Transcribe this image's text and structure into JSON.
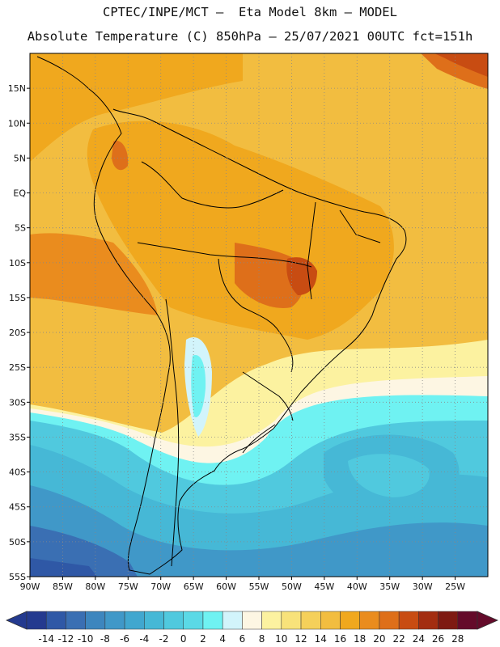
{
  "header": {
    "line1": "CPTEC/INPE/MCT –  Eta Model 8km – MODEL",
    "line2": "Absolute Temperature (C) 850hPa – 25/07/2021 00UTC fct=151h"
  },
  "map": {
    "type": "temperature-field",
    "variable": "Absolute Temperature",
    "units": "C",
    "level": "850hPa",
    "run": "25/07/2021 00UTC",
    "forecast_hours": "151h",
    "lon_range": [
      -90,
      -20
    ],
    "lat_range": [
      -55,
      20
    ],
    "lat_labels": [
      "15N",
      "10N",
      "5N",
      "EQ",
      "5S",
      "10S",
      "15S",
      "20S",
      "25S",
      "30S",
      "35S",
      "40S",
      "45S",
      "50S",
      "55S"
    ],
    "lat_values": [
      15,
      10,
      5,
      0,
      -5,
      -10,
      -15,
      -20,
      -25,
      -30,
      -35,
      -40,
      -45,
      -50,
      -55
    ],
    "lon_labels": [
      "90W",
      "85W",
      "80W",
      "75W",
      "70W",
      "65W",
      "60W",
      "55W",
      "50W",
      "45W",
      "40W",
      "35W",
      "30W",
      "25W"
    ],
    "lon_values": [
      -90,
      -85,
      -80,
      -75,
      -70,
      -65,
      -60,
      -55,
      -50,
      -45,
      -40,
      -35,
      -30,
      -25
    ]
  },
  "colorbar": {
    "labels": [
      "-14",
      "-12",
      "-10",
      "-8",
      "-6",
      "-4",
      "-2",
      "0",
      "2",
      "4",
      "6",
      "8",
      "10",
      "12",
      "14",
      "16",
      "18",
      "20",
      "22",
      "24",
      "26",
      "28"
    ],
    "colors": [
      "#243a8f",
      "#2f58a6",
      "#3a6fb3",
      "#3d86be",
      "#4098c8",
      "#41a7cf",
      "#46b8d6",
      "#50c9de",
      "#5bd9e6",
      "#6ff2f2",
      "#d2f4fb",
      "#fdf6e3",
      "#fcf2a0",
      "#f8e27a",
      "#f5d05a",
      "#f2bd40",
      "#f0a81e",
      "#ea8c1e",
      "#de6f1a",
      "#c84c12",
      "#a32d10",
      "#7e1a12",
      "#640b2a"
    ],
    "min_arrow_color": "#243a8f",
    "max_arrow_color": "#640b2a"
  }
}
